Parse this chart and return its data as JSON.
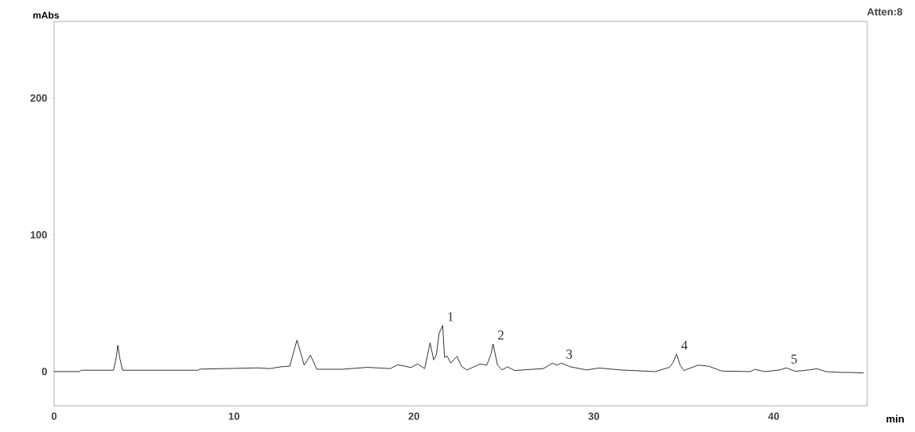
{
  "chart_data": {
    "type": "line",
    "xlabel": "min",
    "ylabel": "mAbs",
    "color": "#000000",
    "grid": false,
    "marker": "none",
    "line_style": "solid",
    "xlim": [
      0,
      45.2
    ],
    "ylim": [
      -25,
      256
    ],
    "xticks": [
      0,
      10,
      20,
      30,
      40
    ],
    "yticks": [
      0,
      100,
      200
    ],
    "x": [
      0,
      1.4,
      1.5,
      3.3,
      3.45,
      3.54,
      3.65,
      3.8,
      8.0,
      8.1,
      11.3,
      12.0,
      12.6,
      13.1,
      13.5,
      13.9,
      14.25,
      14.6,
      16.0,
      17.4,
      18.7,
      19.1,
      19.85,
      20.2,
      20.6,
      20.9,
      21.1,
      21.25,
      21.4,
      21.6,
      21.7,
      21.85,
      22.05,
      22.4,
      22.65,
      22.95,
      23.7,
      24.05,
      24.3,
      24.4,
      24.65,
      24.9,
      25.2,
      25.6,
      27.2,
      27.7,
      27.95,
      28.2,
      28.7,
      29.6,
      30.3,
      31.5,
      33.4,
      34.2,
      34.4,
      34.6,
      34.8,
      35.0,
      35.8,
      36.4,
      37.1,
      38.7,
      38.95,
      39.5,
      40.35,
      40.7,
      41.2,
      41.95,
      42.4,
      42.9,
      43.75,
      44.2,
      45.0
    ],
    "values": [
      0,
      0,
      1,
      1,
      10,
      19.2,
      10,
      1,
      1,
      1.8,
      2.7,
      2.2,
      3.5,
      4,
      23,
      4.7,
      12,
      1.7,
      1.7,
      3.1,
      2.2,
      5.0,
      3,
      5.6,
      2.2,
      21,
      8.5,
      12.4,
      28,
      33.7,
      10.5,
      11.2,
      6.2,
      11.2,
      3.7,
      1.2,
      5.6,
      4.7,
      13.4,
      20.2,
      4.7,
      1.2,
      3.5,
      0.8,
      2.2,
      6.2,
      4.7,
      6.2,
      3.5,
      1.2,
      2.6,
      1.2,
      0,
      3.1,
      6.6,
      12.8,
      4.7,
      0.8,
      4.7,
      3.9,
      0.4,
      0,
      1.6,
      0,
      1.2,
      2.7,
      0.2,
      1.2,
      2.1,
      0,
      -0.6,
      -0.6,
      -1
    ],
    "annotations": [
      "Atten:8",
      {
        "text": "1",
        "x": 21.6,
        "y": 33.7
      },
      {
        "text": "2",
        "x": 24.4,
        "y": 20.2
      },
      {
        "text": "3",
        "x": 28.2,
        "y": 6.2
      },
      {
        "text": "4",
        "x": 34.6,
        "y": 12.8
      },
      {
        "text": "5",
        "x": 40.7,
        "y": 2.7
      }
    ]
  }
}
